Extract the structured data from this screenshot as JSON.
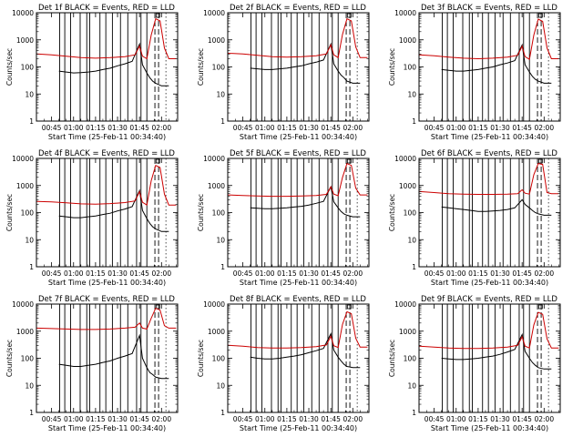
{
  "figure": {
    "x_ticks": [
      "00:45",
      "01:00",
      "01:15",
      "01:30",
      "01:45",
      "02:00"
    ],
    "y_ticks": [
      "1",
      "10",
      "100",
      "1000",
      "10000"
    ],
    "xlabel": "Start Time (25-Feb-11 00:34:40)",
    "ylabel": "Counts/sec",
    "colors": {
      "events": "#000000",
      "lld": "#cc0000",
      "axes": "#000000"
    }
  },
  "chart_data": [
    {
      "type": "line",
      "title": "Det 1f BLACK = Events, RED = LLD",
      "ylabel": "Counts/sec",
      "xlabel": "Start Time (25-Feb-11 00:34:40)",
      "x_ticks": [
        "00:45",
        "01:00",
        "01:15",
        "01:30",
        "01:45",
        "02:00"
      ],
      "ylim": [
        1,
        10000
      ],
      "yscale": "log",
      "series": [
        {
          "name": "Events",
          "color": "#000000",
          "x": [
            "00:50",
            "00:55",
            "01:00",
            "01:05",
            "01:10",
            "01:15",
            "01:20",
            "01:25",
            "01:30",
            "01:35",
            "01:40",
            "01:45",
            "01:47",
            "01:50",
            "01:52",
            "01:54",
            "01:56",
            "02:00",
            "02:05"
          ],
          "values": [
            70,
            65,
            60,
            62,
            65,
            70,
            80,
            90,
            110,
            130,
            160,
            700,
            120,
            60,
            40,
            30,
            25,
            20,
            20
          ]
        },
        {
          "name": "LLD",
          "color": "#cc0000",
          "x": [
            "00:35",
            "00:45",
            "00:55",
            "01:05",
            "01:15",
            "01:25",
            "01:35",
            "01:42",
            "01:45",
            "01:47",
            "01:50",
            "01:53",
            "01:56",
            "01:59",
            "02:02",
            "02:05",
            "02:10"
          ],
          "values": [
            300,
            280,
            250,
            220,
            210,
            220,
            240,
            280,
            600,
            250,
            200,
            1500,
            6000,
            5000,
            500,
            200,
            200
          ]
        }
      ]
    },
    {
      "type": "line",
      "title": "Det 2f BLACK = Events, RED = LLD",
      "ylabel": "Counts/sec",
      "xlabel": "Start Time (25-Feb-11 00:34:40)",
      "x_ticks": [
        "00:45",
        "01:00",
        "01:15",
        "01:30",
        "01:45",
        "02:00"
      ],
      "ylim": [
        1,
        10000
      ],
      "yscale": "log",
      "series": [
        {
          "name": "Events",
          "color": "#000000",
          "x": [
            "00:50",
            "00:55",
            "01:00",
            "01:05",
            "01:10",
            "01:15",
            "01:20",
            "01:25",
            "01:30",
            "01:35",
            "01:40",
            "01:45",
            "01:47",
            "01:50",
            "01:52",
            "01:54",
            "01:56",
            "02:00",
            "02:05"
          ],
          "values": [
            90,
            85,
            80,
            80,
            85,
            90,
            100,
            110,
            130,
            150,
            180,
            700,
            130,
            70,
            50,
            40,
            30,
            25,
            25
          ]
        },
        {
          "name": "LLD",
          "color": "#cc0000",
          "x": [
            "00:35",
            "00:45",
            "00:55",
            "01:05",
            "01:15",
            "01:25",
            "01:35",
            "01:42",
            "01:45",
            "01:47",
            "01:50",
            "01:53",
            "01:56",
            "01:59",
            "02:02",
            "02:05",
            "02:10"
          ],
          "values": [
            320,
            300,
            270,
            240,
            230,
            240,
            260,
            300,
            650,
            280,
            220,
            1600,
            6000,
            5000,
            550,
            220,
            220
          ]
        }
      ]
    },
    {
      "type": "line",
      "title": "Det 3f BLACK = Events, RED = LLD",
      "ylabel": "Counts/sec",
      "xlabel": "Start Time (25-Feb-11 00:34:40)",
      "x_ticks": [
        "00:45",
        "01:00",
        "01:15",
        "01:30",
        "01:45",
        "02:00"
      ],
      "ylim": [
        1,
        10000
      ],
      "yscale": "log",
      "series": [
        {
          "name": "Events",
          "color": "#000000",
          "x": [
            "00:50",
            "00:55",
            "01:00",
            "01:05",
            "01:10",
            "01:15",
            "01:20",
            "01:25",
            "01:30",
            "01:35",
            "01:40",
            "01:45",
            "01:47",
            "01:50",
            "01:52",
            "01:54",
            "01:56",
            "02:00",
            "02:05"
          ],
          "values": [
            80,
            75,
            70,
            70,
            75,
            80,
            90,
            100,
            120,
            140,
            170,
            650,
            120,
            65,
            45,
            35,
            30,
            25,
            25
          ]
        },
        {
          "name": "LLD",
          "color": "#cc0000",
          "x": [
            "00:35",
            "00:45",
            "00:55",
            "01:05",
            "01:15",
            "01:25",
            "01:35",
            "01:42",
            "01:45",
            "01:47",
            "01:50",
            "01:53",
            "01:56",
            "01:59",
            "02:02",
            "02:05",
            "02:10"
          ],
          "values": [
            280,
            260,
            230,
            210,
            200,
            210,
            230,
            270,
            580,
            240,
            190,
            1500,
            5800,
            4800,
            500,
            200,
            200
          ]
        }
      ]
    },
    {
      "type": "line",
      "title": "Det 4f BLACK = Events, RED = LLD",
      "ylabel": "Counts/sec",
      "xlabel": "Start Time (25-Feb-11 00:34:40)",
      "x_ticks": [
        "00:45",
        "01:00",
        "01:15",
        "01:30",
        "01:45",
        "02:00"
      ],
      "ylim": [
        1,
        10000
      ],
      "yscale": "log",
      "series": [
        {
          "name": "Events",
          "color": "#000000",
          "x": [
            "00:50",
            "00:55",
            "01:00",
            "01:05",
            "01:10",
            "01:15",
            "01:20",
            "01:25",
            "01:30",
            "01:35",
            "01:40",
            "01:45",
            "01:47",
            "01:50",
            "01:52",
            "01:54",
            "01:56",
            "02:00",
            "02:05"
          ],
          "values": [
            75,
            70,
            65,
            65,
            70,
            75,
            85,
            95,
            115,
            135,
            165,
            650,
            120,
            60,
            40,
            30,
            25,
            20,
            20
          ]
        },
        {
          "name": "LLD",
          "color": "#cc0000",
          "x": [
            "00:35",
            "00:45",
            "00:55",
            "01:05",
            "01:15",
            "01:25",
            "01:35",
            "01:42",
            "01:45",
            "01:47",
            "01:50",
            "01:53",
            "01:56",
            "01:59",
            "02:02",
            "02:05",
            "02:10"
          ],
          "values": [
            260,
            250,
            230,
            210,
            205,
            215,
            235,
            270,
            600,
            240,
            190,
            1500,
            5500,
            4600,
            480,
            190,
            190
          ]
        }
      ]
    },
    {
      "type": "line",
      "title": "Det 5f BLACK = Events, RED = LLD",
      "ylabel": "Counts/sec",
      "xlabel": "Start Time (25-Feb-11 00:34:40)",
      "x_ticks": [
        "00:45",
        "01:00",
        "01:15",
        "01:30",
        "01:45",
        "02:00"
      ],
      "ylim": [
        1,
        10000
      ],
      "yscale": "log",
      "series": [
        {
          "name": "Events",
          "color": "#000000",
          "x": [
            "00:50",
            "00:55",
            "01:00",
            "01:05",
            "01:10",
            "01:15",
            "01:20",
            "01:25",
            "01:30",
            "01:35",
            "01:40",
            "01:45",
            "01:47",
            "01:50",
            "01:52",
            "01:54",
            "01:56",
            "02:00",
            "02:05"
          ],
          "values": [
            150,
            145,
            140,
            140,
            145,
            150,
            160,
            170,
            190,
            220,
            260,
            900,
            250,
            150,
            110,
            90,
            80,
            70,
            70
          ]
        },
        {
          "name": "LLD",
          "color": "#cc0000",
          "x": [
            "00:35",
            "00:45",
            "00:55",
            "01:05",
            "01:15",
            "01:25",
            "01:35",
            "01:42",
            "01:45",
            "01:47",
            "01:50",
            "01:53",
            "01:56",
            "01:59",
            "02:02",
            "02:05",
            "02:10"
          ],
          "values": [
            450,
            430,
            410,
            400,
            400,
            410,
            430,
            470,
            900,
            480,
            420,
            2000,
            6500,
            5500,
            800,
            450,
            450
          ]
        }
      ]
    },
    {
      "type": "line",
      "title": "Det 6f BLACK = Events, RED = LLD",
      "ylabel": "Counts/sec",
      "xlabel": "Start Time (25-Feb-11 00:34:40)",
      "x_ticks": [
        "00:45",
        "01:00",
        "01:15",
        "01:30",
        "01:45",
        "02:00"
      ],
      "ylim": [
        1,
        10000
      ],
      "yscale": "log",
      "series": [
        {
          "name": "Events",
          "color": "#000000",
          "x": [
            "00:50",
            "00:55",
            "01:00",
            "01:05",
            "01:10",
            "01:15",
            "01:20",
            "01:25",
            "01:30",
            "01:35",
            "01:40",
            "01:45",
            "01:47",
            "01:50",
            "01:52",
            "01:54",
            "01:56",
            "02:00",
            "02:05"
          ],
          "values": [
            160,
            150,
            140,
            130,
            120,
            110,
            110,
            115,
            120,
            130,
            150,
            300,
            200,
            150,
            120,
            100,
            90,
            80,
            80
          ]
        },
        {
          "name": "LLD",
          "color": "#cc0000",
          "x": [
            "00:35",
            "00:45",
            "00:55",
            "01:05",
            "01:15",
            "01:25",
            "01:35",
            "01:42",
            "01:45",
            "01:47",
            "01:50",
            "01:53",
            "01:56",
            "01:59",
            "02:02",
            "02:05",
            "02:10"
          ],
          "values": [
            600,
            550,
            500,
            480,
            470,
            470,
            480,
            500,
            700,
            520,
            480,
            2500,
            6500,
            6000,
            550,
            500,
            500
          ]
        }
      ]
    },
    {
      "type": "line",
      "title": "Det 7f BLACK = Events, RED = LLD",
      "ylabel": "Counts/sec",
      "xlabel": "Start Time (25-Feb-11 00:34:40)",
      "x_ticks": [
        "00:45",
        "01:00",
        "01:15",
        "01:30",
        "01:45",
        "02:00"
      ],
      "ylim": [
        1,
        10000
      ],
      "yscale": "log",
      "series": [
        {
          "name": "Events",
          "color": "#000000",
          "x": [
            "00:50",
            "00:55",
            "01:00",
            "01:05",
            "01:10",
            "01:15",
            "01:20",
            "01:25",
            "01:30",
            "01:35",
            "01:40",
            "01:45",
            "01:47",
            "01:50",
            "01:52",
            "01:54",
            "01:56",
            "02:00",
            "02:05"
          ],
          "values": [
            60,
            55,
            50,
            50,
            55,
            60,
            70,
            80,
            100,
            120,
            150,
            700,
            100,
            45,
            30,
            25,
            20,
            18,
            18
          ]
        },
        {
          "name": "LLD",
          "color": "#cc0000",
          "x": [
            "00:35",
            "00:45",
            "00:55",
            "01:05",
            "01:15",
            "01:25",
            "01:35",
            "01:42",
            "01:45",
            "01:47",
            "01:50",
            "01:53",
            "01:56",
            "01:59",
            "02:02",
            "02:05",
            "02:10"
          ],
          "values": [
            1300,
            1250,
            1200,
            1150,
            1150,
            1200,
            1300,
            1400,
            2000,
            1300,
            1200,
            3000,
            7000,
            6000,
            1600,
            1300,
            1300
          ]
        }
      ]
    },
    {
      "type": "line",
      "title": "Det 8f BLACK = Events, RED = LLD",
      "ylabel": "Counts/sec",
      "xlabel": "Start Time (25-Feb-11 00:34:40)",
      "x_ticks": [
        "00:45",
        "01:00",
        "01:15",
        "01:30",
        "01:45",
        "02:00"
      ],
      "ylim": [
        1,
        10000
      ],
      "yscale": "log",
      "series": [
        {
          "name": "Events",
          "color": "#000000",
          "x": [
            "00:50",
            "00:55",
            "01:00",
            "01:05",
            "01:10",
            "01:15",
            "01:20",
            "01:25",
            "01:30",
            "01:35",
            "01:40",
            "01:45",
            "01:47",
            "01:50",
            "01:52",
            "01:54",
            "01:56",
            "02:00",
            "02:05"
          ],
          "values": [
            110,
            100,
            95,
            95,
            100,
            110,
            120,
            135,
            160,
            190,
            230,
            800,
            200,
            110,
            80,
            60,
            50,
            45,
            45
          ]
        },
        {
          "name": "LLD",
          "color": "#cc0000",
          "x": [
            "00:35",
            "00:45",
            "00:55",
            "01:05",
            "01:15",
            "01:25",
            "01:35",
            "01:42",
            "01:45",
            "01:47",
            "01:50",
            "01:53",
            "01:56",
            "01:59",
            "02:02",
            "02:05",
            "02:10"
          ],
          "values": [
            300,
            280,
            250,
            240,
            240,
            250,
            270,
            310,
            650,
            290,
            250,
            1800,
            5200,
            4400,
            550,
            260,
            260
          ]
        }
      ]
    },
    {
      "type": "line",
      "title": "Det 9f BLACK = Events, RED = LLD",
      "ylabel": "Counts/sec",
      "xlabel": "Start Time (25-Feb-11 00:34:40)",
      "x_ticks": [
        "00:45",
        "01:00",
        "01:15",
        "01:30",
        "01:45",
        "02:00"
      ],
      "ylim": [
        1,
        10000
      ],
      "yscale": "log",
      "series": [
        {
          "name": "Events",
          "color": "#000000",
          "x": [
            "00:50",
            "00:55",
            "01:00",
            "01:05",
            "01:10",
            "01:15",
            "01:20",
            "01:25",
            "01:30",
            "01:35",
            "01:40",
            "01:45",
            "01:47",
            "01:50",
            "01:52",
            "01:54",
            "01:56",
            "02:00",
            "02:05"
          ],
          "values": [
            100,
            95,
            90,
            90,
            95,
            100,
            110,
            120,
            140,
            170,
            210,
            750,
            180,
            100,
            70,
            55,
            45,
            40,
            40
          ]
        },
        {
          "name": "LLD",
          "color": "#cc0000",
          "x": [
            "00:35",
            "00:45",
            "00:55",
            "01:05",
            "01:15",
            "01:25",
            "01:35",
            "01:42",
            "01:45",
            "01:47",
            "01:50",
            "01:53",
            "01:56",
            "01:59",
            "02:02",
            "02:05",
            "02:10"
          ],
          "values": [
            280,
            260,
            240,
            230,
            230,
            240,
            260,
            300,
            620,
            280,
            240,
            1700,
            5000,
            4200,
            520,
            240,
            240
          ]
        }
      ]
    }
  ]
}
